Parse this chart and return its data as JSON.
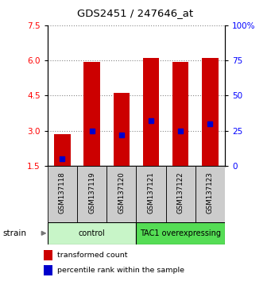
{
  "title": "GDS2451 / 247646_at",
  "samples": [
    "GSM137118",
    "GSM137119",
    "GSM137120",
    "GSM137121",
    "GSM137122",
    "GSM137123"
  ],
  "transformed_counts": [
    2.85,
    5.92,
    4.62,
    6.12,
    5.92,
    6.12
  ],
  "percentile_ranks": [
    5,
    25,
    22,
    32,
    25,
    30
  ],
  "bar_bottom": 1.5,
  "ylim_left": [
    1.5,
    7.5
  ],
  "ylim_right": [
    0,
    100
  ],
  "yticks_left": [
    1.5,
    3.0,
    4.5,
    6.0,
    7.5
  ],
  "yticks_right": [
    0,
    25,
    50,
    75,
    100
  ],
  "groups": [
    {
      "label": "control",
      "indices": [
        0,
        1,
        2
      ],
      "color": "#c8f5c8"
    },
    {
      "label": "TAC1 overexpressing",
      "indices": [
        3,
        4,
        5
      ],
      "color": "#55dd55"
    }
  ],
  "bar_color": "#cc0000",
  "marker_color": "#0000cc",
  "grid_color": "#888888",
  "label_bg_color": "#cccccc",
  "legend_red_label": "transformed count",
  "legend_blue_label": "percentile rank within the sample",
  "strain_label": "strain",
  "bar_width": 0.55
}
